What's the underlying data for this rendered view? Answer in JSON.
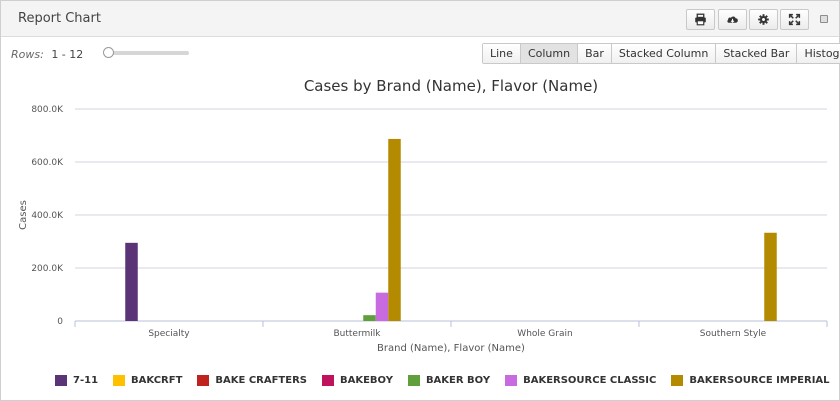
{
  "header": {
    "title": "Report Chart",
    "buttons": [
      {
        "name": "print-icon"
      },
      {
        "name": "cloud-download-icon"
      },
      {
        "name": "gear-icon"
      },
      {
        "name": "expand-icon"
      }
    ],
    "minimize": "minimize-icon"
  },
  "rows": {
    "label": "Rows:",
    "value": "1 - 12",
    "slider_fraction": 0.0
  },
  "chart_types": {
    "active": "Column",
    "items": [
      "Line",
      "Column",
      "Bar",
      "Stacked Column",
      "Stacked Bar",
      "Histogram"
    ]
  },
  "chart_data": {
    "type": "bar",
    "title": "Cases by Brand (Name), Flavor (Name)",
    "xlabel": "Brand (Name), Flavor (Name)",
    "ylabel": "Cases",
    "ylim": [
      0,
      800000
    ],
    "yticks": [
      0,
      200000,
      400000,
      600000,
      800000
    ],
    "ytick_labels": [
      "0",
      "200.0K",
      "400.0K",
      "600.0K",
      "800.0K"
    ],
    "grid": true,
    "legend_position": "bottom",
    "categories": [
      "Specialty",
      "Buttermilk",
      "Whole Grain",
      "Southern Style"
    ],
    "series": [
      {
        "name": "7-11",
        "color": "#5b3478",
        "values": [
          295000,
          0,
          0,
          0
        ]
      },
      {
        "name": "BAKCRFT",
        "color": "#ffc000",
        "values": [
          0,
          0,
          0,
          0
        ]
      },
      {
        "name": "BAKE CRAFTERS",
        "color": "#c0221f",
        "values": [
          0,
          0,
          0,
          0
        ]
      },
      {
        "name": "BAKEBOY",
        "color": "#c0135e",
        "values": [
          0,
          0,
          0,
          0
        ]
      },
      {
        "name": "BAKER BOY",
        "color": "#5fa03c",
        "values": [
          0,
          22000,
          0,
          0
        ]
      },
      {
        "name": "BAKERSOURCE CLASSIC",
        "color": "#c86ae0",
        "values": [
          0,
          107000,
          0,
          0
        ]
      },
      {
        "name": "BAKERSOURCE IMPERIAL",
        "color": "#b48a00",
        "values": [
          0,
          687000,
          0,
          333000
        ]
      }
    ]
  }
}
